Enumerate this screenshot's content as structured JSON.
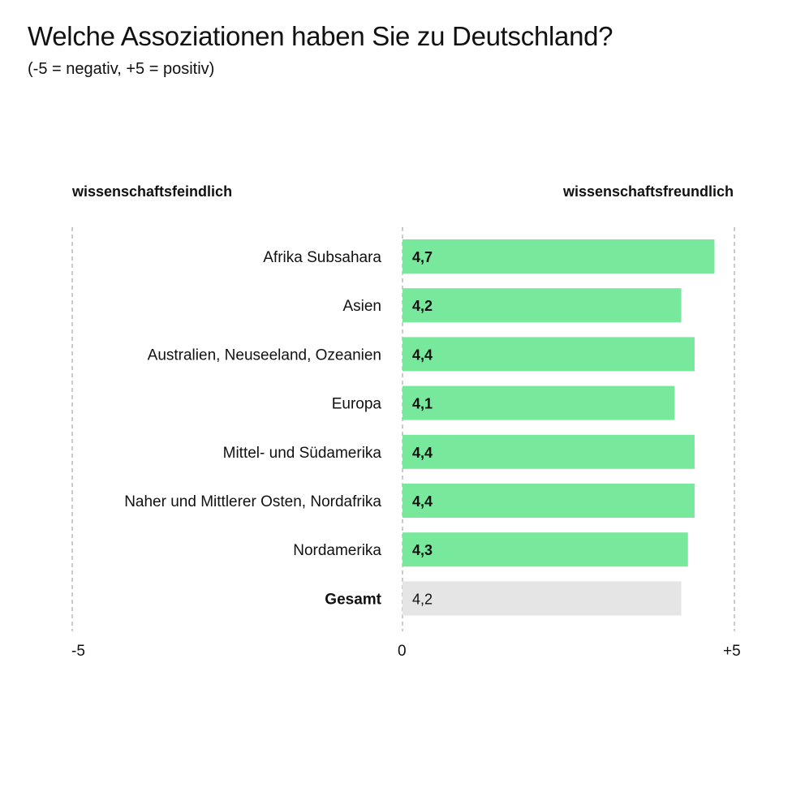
{
  "title": "Welche Assoziationen haben Sie zu Deutschland?",
  "subtitle": "(-5 = negativ, +5 = positiv)",
  "colors": {
    "bar": "#77e89c",
    "total_bar": "#e5e5e5",
    "guide": "#999999"
  },
  "chart_data": {
    "type": "bar",
    "orientation": "horizontal",
    "left_label": "wissenschaftsfeindlich",
    "right_label": "wissenschaftsfreundlich",
    "xlim": [
      -5,
      5
    ],
    "ticks": [
      {
        "value": -5,
        "label": "-5"
      },
      {
        "value": 0,
        "label": "0"
      },
      {
        "value": 5,
        "label": "+5"
      }
    ],
    "categories": [
      "Afrika Subsahara",
      "Asien",
      "Australien, Neuseeland, Ozeanien",
      "Europa",
      "Mittel- und Südamerika",
      "Naher und Mittlerer Osten, Nordafrika",
      "Nordamerika",
      "Gesamt"
    ],
    "values": [
      4.7,
      4.2,
      4.4,
      4.1,
      4.4,
      4.4,
      4.3,
      4.2
    ],
    "value_labels": [
      "4,7",
      "4,2",
      "4,4",
      "4,1",
      "4,4",
      "4,4",
      "4,3",
      "4,2"
    ],
    "total_index": 7
  }
}
